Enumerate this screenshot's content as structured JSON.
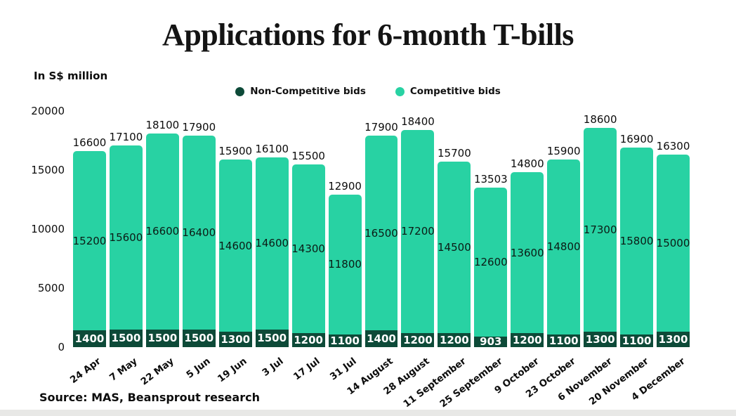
{
  "title": "Applications for 6-month T-bills",
  "unit_note": "In S$ million",
  "legend": [
    {
      "label": "Non-Competitive bids",
      "color": "#0d4a38"
    },
    {
      "label": "Competitive bids",
      "color": "#28d2a3"
    }
  ],
  "source": "Source: MAS, Beansprout research",
  "colors": {
    "competitive": "#28d2a3",
    "non_competitive": "#0d4a38",
    "background": "#ffffff",
    "bottom_strip": "#e8e8e6"
  },
  "chart_data": {
    "type": "bar",
    "stacked": true,
    "title": "Applications for 6-month T-bills",
    "ylabel": "In S$ million",
    "xlabel": "",
    "ylim": [
      0,
      20000
    ],
    "yticks": [
      0,
      5000,
      10000,
      15000,
      20000
    ],
    "grid": false,
    "legend_position": "top",
    "categories": [
      "24 Apr",
      "7 May",
      "22 May",
      "5 Jun",
      "19 Jun",
      "3 Jul",
      "17 Jul",
      "31 Jul",
      "14 August",
      "28 August",
      "11 September",
      "25 September",
      "9 October",
      "23 October",
      "6 November",
      "20 November",
      "4 December"
    ],
    "series": [
      {
        "name": "Non-Competitive bids",
        "color": "#0d4a38",
        "values": [
          1400,
          1500,
          1500,
          1500,
          1300,
          1500,
          1200,
          1100,
          1400,
          1200,
          1200,
          903,
          1200,
          1100,
          1300,
          1100,
          1300
        ]
      },
      {
        "name": "Competitive bids",
        "color": "#28d2a3",
        "values": [
          15200,
          15600,
          16600,
          16400,
          14600,
          14600,
          14300,
          11800,
          16500,
          17200,
          14500,
          12600,
          13600,
          14800,
          17300,
          15800,
          15000
        ]
      }
    ],
    "totals": [
      16600,
      17100,
      18100,
      17900,
      15900,
      16100,
      15500,
      12900,
      17900,
      18400,
      15700,
      13503,
      14800,
      15900,
      18600,
      16900,
      16300
    ]
  }
}
